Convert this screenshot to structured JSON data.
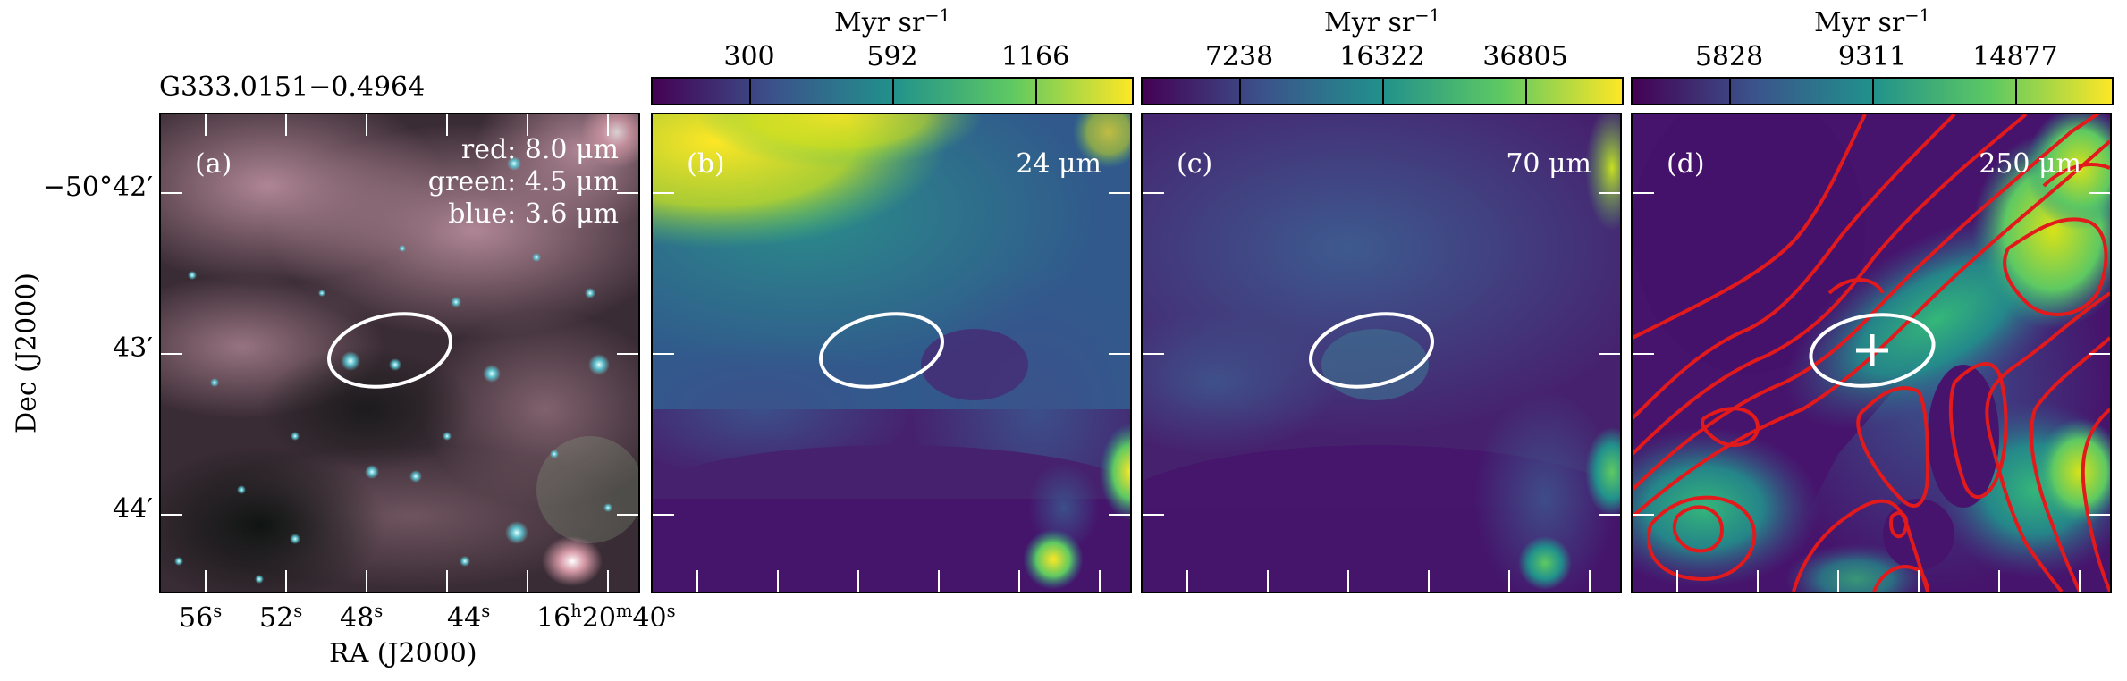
{
  "source_name": "G333.0151−0.4964",
  "axes": {
    "xlabel": "RA (J2000)",
    "ylabel": "Dec (J2000)",
    "x_ticks": [
      {
        "base": "56",
        "sup": "s"
      },
      {
        "base": "52",
        "sup": "s"
      },
      {
        "base": "48",
        "sup": "s"
      },
      {
        "base": "44",
        "sup": "s"
      }
    ],
    "x_tick_last": {
      "h": "16",
      "m": "20",
      "s": "40"
    },
    "y_ticks": [
      "−50°42′",
      "43′",
      "44′"
    ]
  },
  "panels": [
    {
      "label": "(a)",
      "legend": [
        "red: 8.0 μm",
        "green: 4.5 μm",
        "blue: 3.6 μm"
      ]
    },
    {
      "label": "(b)",
      "wavelength": "24 μm"
    },
    {
      "label": "(c)",
      "wavelength": "70 μm"
    },
    {
      "label": "(d)",
      "wavelength": "250 μm"
    }
  ],
  "colorbars": [
    {
      "title_base": "Myr sr",
      "title_sup": "−1",
      "ticks": [
        "300",
        "592",
        "1166"
      ]
    },
    {
      "title_base": "Myr sr",
      "title_sup": "−1",
      "ticks": [
        "7238",
        "16322",
        "36805"
      ]
    },
    {
      "title_base": "Myr sr",
      "title_sup": "−1",
      "ticks": [
        "5828",
        "9311",
        "14877"
      ]
    }
  ],
  "colors": {
    "viridis": [
      "#440154",
      "#3b528b",
      "#21918c",
      "#5ec962",
      "#fde725"
    ],
    "contour": "#e31a1c",
    "ellipse": "#ffffff"
  }
}
